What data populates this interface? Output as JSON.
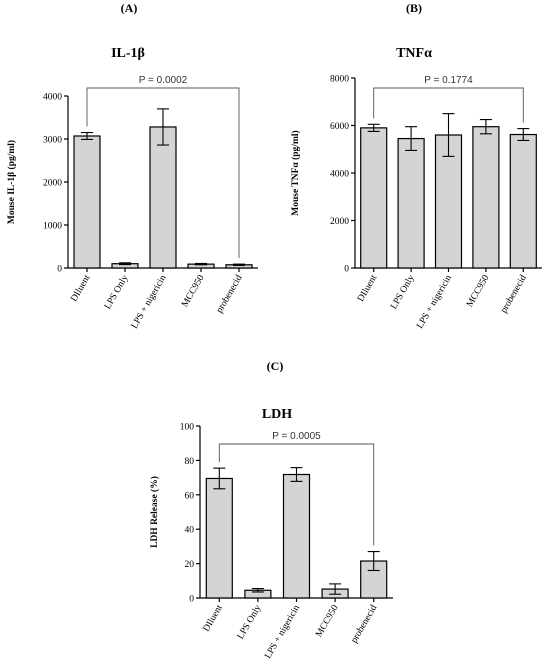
{
  "chart_data": [
    {
      "panel": "(A)",
      "type": "bar",
      "title": "IL-1β",
      "ylabel": "Mouse IL-1β (pg/ml)",
      "categories": [
        "DIluent",
        "LPS Only",
        "LPS + nigericin",
        "MCC950",
        "probenecid"
      ],
      "values": [
        3070,
        100,
        3280,
        90,
        75
      ],
      "errors": [
        80,
        20,
        420,
        15,
        15
      ],
      "ylim": [
        0,
        4000
      ],
      "yticks": [
        0,
        1000,
        2000,
        3000,
        4000
      ],
      "annotation": {
        "text": "P = 0.0002",
        "from": 0,
        "to": 4
      }
    },
    {
      "panel": "(B)",
      "type": "bar",
      "title": "TNFα",
      "ylabel": "Mouse TNFα (pg/ml)",
      "categories": [
        "DIluent",
        "LPS Only",
        "LPS + nigericin",
        "MCC950",
        "probenecid"
      ],
      "values": [
        5900,
        5450,
        5600,
        5950,
        5620
      ],
      "errors": [
        150,
        500,
        900,
        300,
        250
      ],
      "ylim": [
        0,
        8000
      ],
      "yticks": [
        0,
        2000,
        4000,
        6000,
        8000
      ],
      "annotation": {
        "text": "P = 0.1774",
        "from": 0,
        "to": 4
      }
    },
    {
      "panel": "(C)",
      "type": "bar",
      "title": "LDH",
      "ylabel": "LDH Release (%)",
      "categories": [
        "DIluent",
        "LPS Only",
        "LPS + nigericin",
        "MCC950",
        "probenecid"
      ],
      "values": [
        69.5,
        4.5,
        71.8,
        5.2,
        21.5
      ],
      "errors": [
        6,
        1,
        4,
        3,
        5.5
      ],
      "ylim": [
        0,
        100
      ],
      "yticks": [
        0,
        20,
        40,
        60,
        80,
        100
      ],
      "annotation": {
        "text": "P = 0.0005",
        "from": 0,
        "to": 4
      }
    }
  ]
}
